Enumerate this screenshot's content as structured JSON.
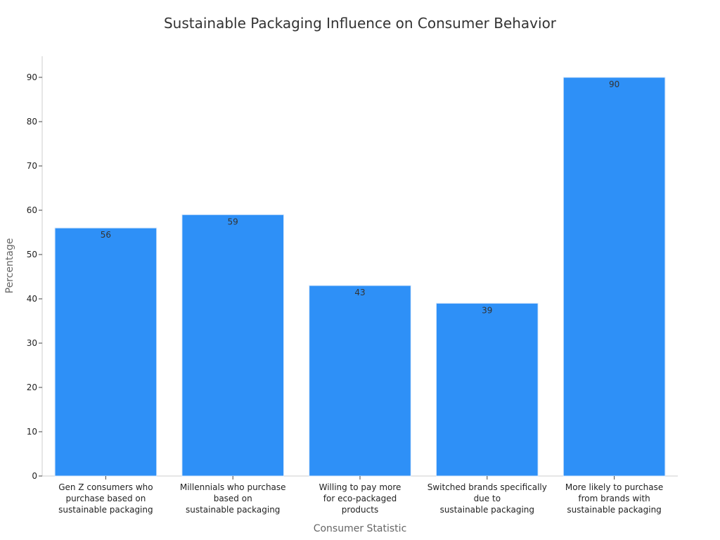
{
  "chart_data": {
    "type": "bar",
    "title": "Sustainable Packaging Influence on Consumer Behavior",
    "xlabel": "Consumer Statistic",
    "ylabel": "Percentage",
    "ylim": [
      0,
      95
    ],
    "yticks": [
      0,
      10,
      20,
      30,
      40,
      50,
      60,
      70,
      80,
      90
    ],
    "categories": [
      "Gen Z consumers who purchase based on sustainable packaging",
      "Millennials who purchase based on sustainable packaging",
      "Willing to pay more for eco-packaged products",
      "Switched brands specifically due to sustainable packaging",
      "More likely to purchase from brands with sustainable packaging"
    ],
    "category_lines": [
      [
        "Gen Z consumers who",
        "purchase based on",
        "sustainable packaging"
      ],
      [
        "Millennials who purchase",
        "based on",
        "sustainable packaging"
      ],
      [
        "Willing to pay more",
        "for eco-packaged",
        "products"
      ],
      [
        "Switched brands specifically",
        "due to",
        "sustainable packaging"
      ],
      [
        "More likely to purchase",
        "from brands with",
        "sustainable packaging"
      ]
    ],
    "values": [
      56,
      59,
      43,
      39,
      90
    ],
    "bar_color": "#2e90f7",
    "grid": false,
    "legend": "none"
  }
}
